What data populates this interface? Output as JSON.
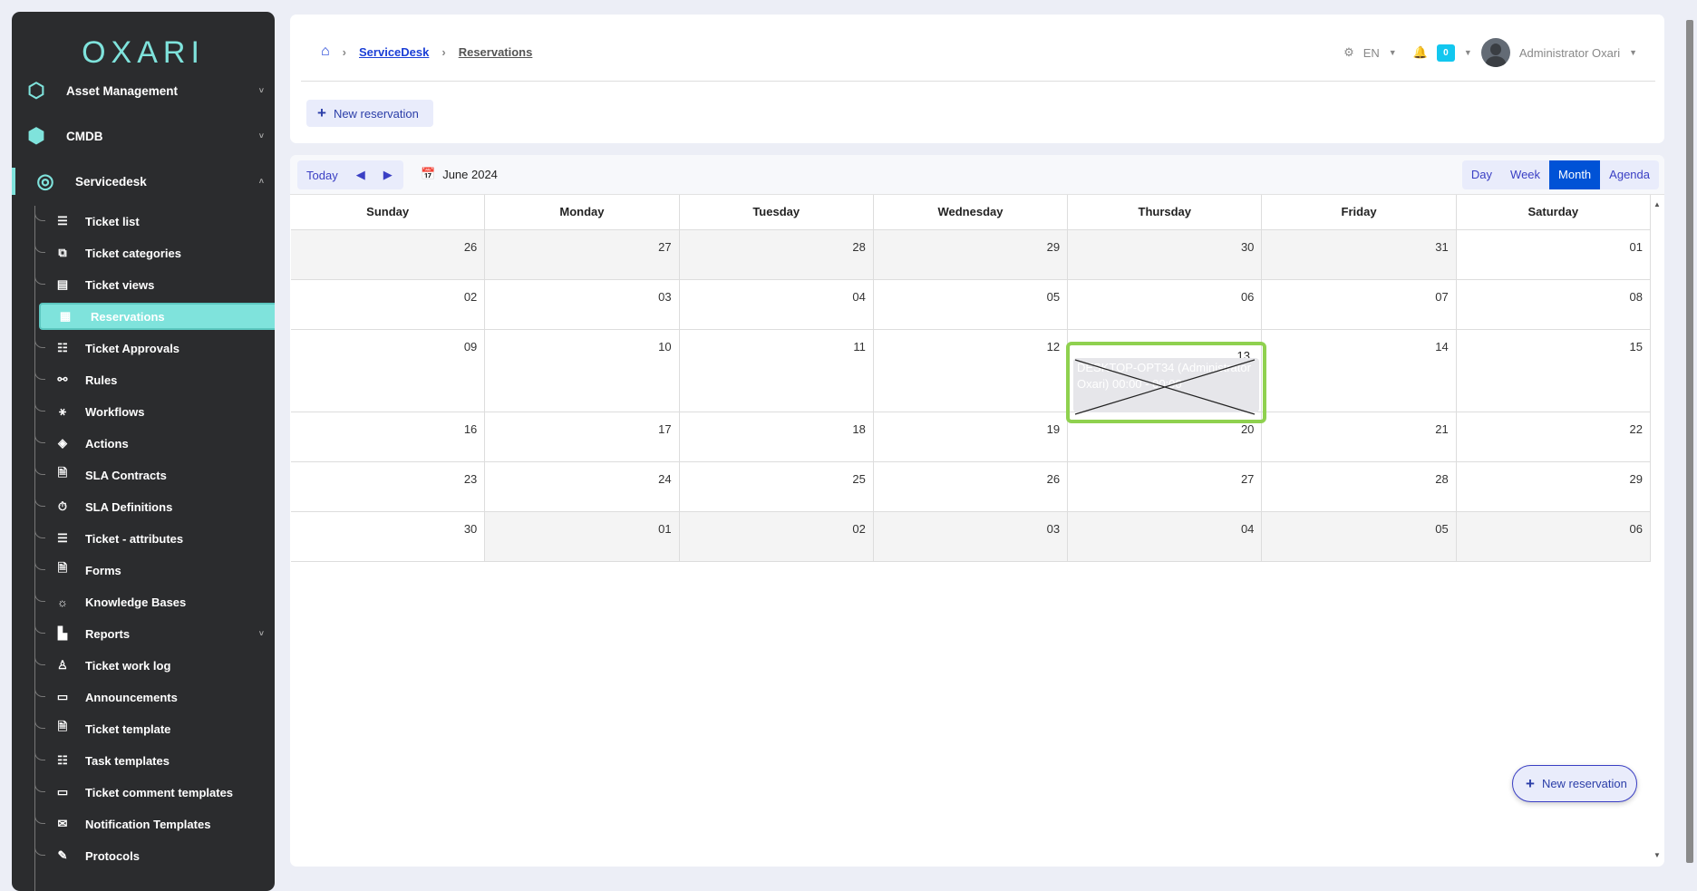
{
  "brand": "OXARI",
  "sidebar": {
    "top": [
      {
        "label": "Asset Management",
        "icon": "hexagons-icon"
      },
      {
        "label": "CMDB",
        "icon": "cmdb-icon"
      },
      {
        "label": "Servicedesk",
        "icon": "headset-icon"
      }
    ],
    "items": [
      {
        "label": "Ticket list",
        "icon": "☰"
      },
      {
        "label": "Ticket categories",
        "icon": "⧉"
      },
      {
        "label": "Ticket views",
        "icon": "▤"
      },
      {
        "label": "Reservations",
        "icon": "▦",
        "active": true
      },
      {
        "label": "Ticket Approvals",
        "icon": "☷"
      },
      {
        "label": "Rules",
        "icon": "⚯"
      },
      {
        "label": "Workflows",
        "icon": "⚹"
      },
      {
        "label": "Actions",
        "icon": "◈"
      },
      {
        "label": "SLA Contracts",
        "icon": "🗎"
      },
      {
        "label": "SLA Definitions",
        "icon": "⏱"
      },
      {
        "label": "Ticket - attributes",
        "icon": "☰"
      },
      {
        "label": "Forms",
        "icon": "🗎"
      },
      {
        "label": "Knowledge Bases",
        "icon": "☼"
      },
      {
        "label": "Reports",
        "icon": "▙",
        "chevron": true
      },
      {
        "label": "Ticket work log",
        "icon": "♙"
      },
      {
        "label": "Announcements",
        "icon": "▭"
      },
      {
        "label": "Ticket template",
        "icon": "🗎"
      },
      {
        "label": "Task templates",
        "icon": "☷"
      },
      {
        "label": "Ticket comment templates",
        "icon": "▭"
      },
      {
        "label": "Notification Templates",
        "icon": "✉"
      },
      {
        "label": "Protocols",
        "icon": "✎"
      }
    ]
  },
  "breadcrumb": {
    "items": [
      "ServiceDesk",
      "Reservations"
    ]
  },
  "header": {
    "new_reservation": "New reservation",
    "language": "EN",
    "notifications": "0",
    "user": "Administrator Oxari"
  },
  "calendar": {
    "today": "Today",
    "month_label": "June 2024",
    "views": [
      "Day",
      "Week",
      "Month",
      "Agenda"
    ],
    "active_view": "Month",
    "weekdays": [
      "Sunday",
      "Monday",
      "Tuesday",
      "Wednesday",
      "Thursday",
      "Friday",
      "Saturday"
    ],
    "weeks": [
      [
        [
          "26",
          1
        ],
        [
          "27",
          1
        ],
        [
          "28",
          1
        ],
        [
          "29",
          1
        ],
        [
          "30",
          1
        ],
        [
          "31",
          1
        ],
        [
          "01",
          0
        ]
      ],
      [
        [
          "02",
          0
        ],
        [
          "03",
          0
        ],
        [
          "04",
          0
        ],
        [
          "05",
          0
        ],
        [
          "06",
          0
        ],
        [
          "07",
          0
        ],
        [
          "08",
          0
        ]
      ],
      [
        [
          "09",
          0
        ],
        [
          "10",
          0
        ],
        [
          "11",
          0
        ],
        [
          "12",
          0
        ],
        [
          "13",
          0
        ],
        [
          "14",
          0
        ],
        [
          "15",
          0
        ]
      ],
      [
        [
          "16",
          0
        ],
        [
          "17",
          0
        ],
        [
          "18",
          0
        ],
        [
          "19",
          0
        ],
        [
          "20",
          0
        ],
        [
          "21",
          0
        ],
        [
          "22",
          0
        ]
      ],
      [
        [
          "23",
          0
        ],
        [
          "24",
          0
        ],
        [
          "25",
          0
        ],
        [
          "26",
          0
        ],
        [
          "27",
          0
        ],
        [
          "28",
          0
        ],
        [
          "29",
          0
        ]
      ],
      [
        [
          "30",
          0
        ],
        [
          "01",
          1
        ],
        [
          "02",
          1
        ],
        [
          "03",
          1
        ],
        [
          "04",
          1
        ],
        [
          "05",
          1
        ],
        [
          "06",
          1
        ]
      ]
    ],
    "event": {
      "day": "13",
      "text": "DESKTOP-OPT34 (Administrator Oxari) 00:00 - 00:00"
    }
  },
  "fab": {
    "label": "New reservation"
  },
  "colors": {
    "accent": "#7fe3dc",
    "primary": "#0052d6",
    "highlight": "#8fd14f"
  }
}
